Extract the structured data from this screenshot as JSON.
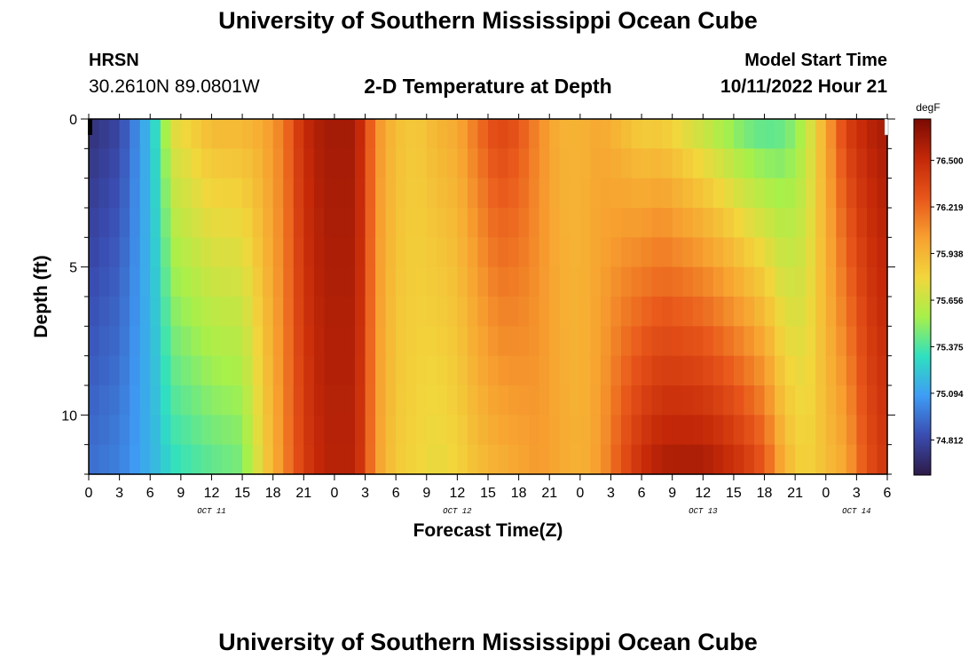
{
  "header": {
    "title": "University of Southern Mississippi Ocean Cube",
    "station": "HRSN",
    "coordinates": "30.2610N  89.0801W",
    "plot_title": "2-D Temperature at Depth",
    "start_label": "Model Start Time",
    "start_value": "10/11/2022 Hour 21",
    "repeat_title": "University of Southern Mississippi Ocean Cube"
  },
  "colors": {
    "scale": [
      "#2d1a46",
      "#3a4cb0",
      "#3e9cf5",
      "#2fe0c0",
      "#a7f04a",
      "#f2d63c",
      "#f7a030",
      "#e8561a",
      "#c42808",
      "#7a0a03"
    ]
  },
  "chart_data": {
    "type": "heatmap",
    "title": "2-D Temperature at Depth",
    "xlabel": "Forecast Time(Z)",
    "ylabel": "Depth (ft)",
    "hours_start": 0,
    "hours_end": 78,
    "hour_step": 1,
    "depth_range": [
      0,
      12
    ],
    "depth_step": 1,
    "x_tick_labels": [
      "0",
      "3",
      "6",
      "9",
      "12",
      "15",
      "18",
      "21",
      "0",
      "3",
      "6",
      "9",
      "12",
      "15",
      "18",
      "21",
      "0",
      "3",
      "6",
      "9",
      "12",
      "15",
      "18",
      "21",
      "0",
      "3",
      "6"
    ],
    "y_ticks": [
      0,
      5,
      10
    ],
    "y_tick_labels": [
      "0",
      "5",
      "10"
    ],
    "day_labels": [
      {
        "label": "OCT 11",
        "hour": 12
      },
      {
        "label": "OCT 12",
        "hour": 36
      },
      {
        "label": "OCT 13",
        "hour": 60
      },
      {
        "label": "OCT 14",
        "hour": 75
      }
    ],
    "colorbar": {
      "unit": "degF",
      "min": 74.6,
      "max": 76.75,
      "tick_values": [
        76.5,
        76.219,
        75.938,
        75.656,
        75.375,
        75.094,
        74.812
      ],
      "tick_labels": [
        "76.500",
        "76.219",
        "75.938",
        "75.656",
        "75.375",
        "75.094",
        "74.812"
      ]
    },
    "keyframes": [
      {
        "hour": 0,
        "surface": 74.7,
        "bottom": 74.95
      },
      {
        "hour": 3,
        "surface": 74.8,
        "bottom": 75.0
      },
      {
        "hour": 6,
        "surface": 75.2,
        "bottom": 75.15
      },
      {
        "hour": 7,
        "surface": 75.4,
        "bottom": 75.2
      },
      {
        "hour": 8,
        "surface": 75.75,
        "bottom": 75.3
      },
      {
        "hour": 10,
        "surface": 75.85,
        "bottom": 75.35
      },
      {
        "hour": 12,
        "surface": 75.95,
        "bottom": 75.4
      },
      {
        "hour": 15,
        "surface": 75.95,
        "bottom": 75.45
      },
      {
        "hour": 17,
        "surface": 76.0,
        "bottom": 75.8
      },
      {
        "hour": 19,
        "surface": 76.15,
        "bottom": 76.1
      },
      {
        "hour": 21,
        "surface": 76.5,
        "bottom": 76.4
      },
      {
        "hour": 23,
        "surface": 76.62,
        "bottom": 76.55
      },
      {
        "hour": 26,
        "surface": 76.62,
        "bottom": 76.55
      },
      {
        "hour": 27,
        "surface": 76.4,
        "bottom": 76.35
      },
      {
        "hour": 28,
        "surface": 76.1,
        "bottom": 76.05
      },
      {
        "hour": 30,
        "surface": 75.9,
        "bottom": 75.85
      },
      {
        "hour": 32,
        "surface": 75.85,
        "bottom": 75.8
      },
      {
        "hour": 34,
        "surface": 75.95,
        "bottom": 75.75
      },
      {
        "hour": 36,
        "surface": 76.0,
        "bottom": 75.8
      },
      {
        "hour": 38,
        "surface": 76.2,
        "bottom": 75.9
      },
      {
        "hour": 40,
        "surface": 76.38,
        "bottom": 75.95
      },
      {
        "hour": 42,
        "surface": 76.3,
        "bottom": 76.0
      },
      {
        "hour": 44,
        "surface": 76.1,
        "bottom": 76.05
      },
      {
        "hour": 46,
        "surface": 75.95,
        "bottom": 76.0
      },
      {
        "hour": 48,
        "surface": 75.95,
        "bottom": 75.95
      },
      {
        "hour": 50,
        "surface": 76.0,
        "bottom": 76.05
      },
      {
        "hour": 52,
        "surface": 75.9,
        "bottom": 76.3
      },
      {
        "hour": 54,
        "surface": 75.8,
        "bottom": 76.5
      },
      {
        "hour": 56,
        "surface": 75.8,
        "bottom": 76.6
      },
      {
        "hour": 58,
        "surface": 75.7,
        "bottom": 76.62
      },
      {
        "hour": 60,
        "surface": 75.6,
        "bottom": 76.62
      },
      {
        "hour": 62,
        "surface": 75.5,
        "bottom": 76.55
      },
      {
        "hour": 64,
        "surface": 75.4,
        "bottom": 76.45
      },
      {
        "hour": 66,
        "surface": 75.35,
        "bottom": 76.3
      },
      {
        "hour": 68,
        "surface": 75.4,
        "bottom": 75.95
      },
      {
        "hour": 70,
        "surface": 75.6,
        "bottom": 75.8
      },
      {
        "hour": 72,
        "surface": 76.0,
        "bottom": 75.9
      },
      {
        "hour": 74,
        "surface": 76.4,
        "bottom": 76.0
      },
      {
        "hour": 76,
        "surface": 76.55,
        "bottom": 76.3
      },
      {
        "hour": 78,
        "surface": 76.62,
        "bottom": 76.45
      }
    ]
  }
}
